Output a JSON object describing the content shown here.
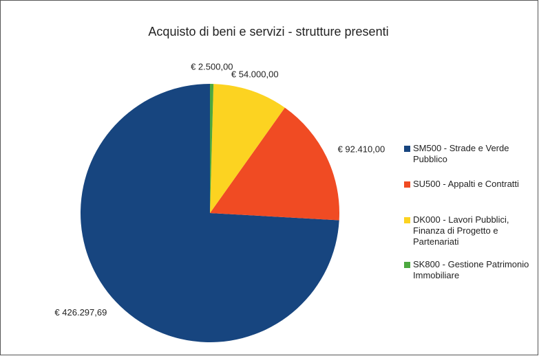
{
  "chart_data": {
    "type": "pie",
    "title": "Acquisto di beni e servizi - strutture presenti",
    "categories": [
      "SM500 - Strade e Verde Pubblico",
      "SU500 - Appalti e Contratti",
      "DK000 - Lavori Pubblici, Finanza di Progetto e Partenariati",
      "SK800 - Gestione Patrimonio Immobiliare"
    ],
    "values": [
      426297.69,
      92410,
      54000,
      2500
    ],
    "value_labels": [
      "€ 426.297,69",
      "€ 92.410,00",
      "€ 54.000,00",
      "€ 2.500,00"
    ],
    "colors": [
      "#17457f",
      "#f04b23",
      "#fcd321",
      "#4ca83f"
    ],
    "legend": "right"
  }
}
